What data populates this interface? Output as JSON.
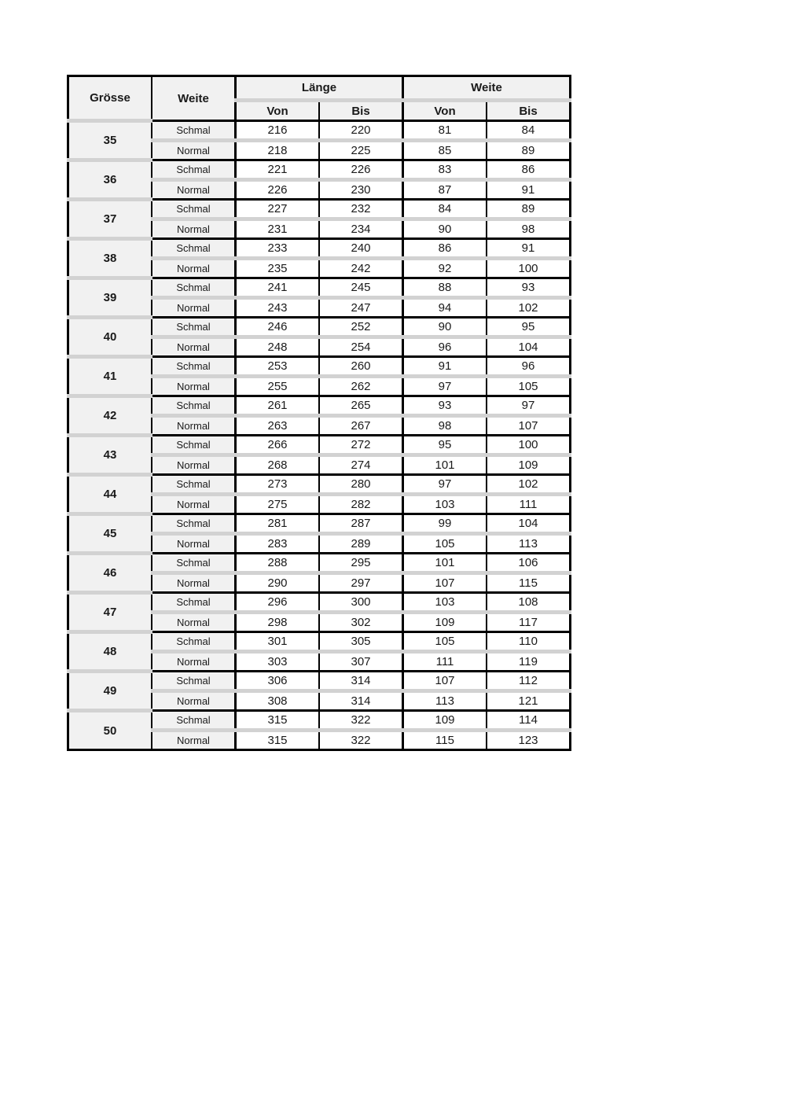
{
  "table": {
    "header": {
      "groesse": "Grösse",
      "weite": "Weite",
      "laenge": "Länge",
      "weite_group": "Weite",
      "von": "Von",
      "bis": "Bis"
    },
    "colors": {
      "border": "#000000",
      "header_bg": "#f1f1f1",
      "separator_band": "#d2d2d2",
      "cell_bg": "#ffffff",
      "text": "#1a1a1a"
    },
    "rows": [
      {
        "size": "35",
        "variants": [
          {
            "weite": "Schmal",
            "laenge_von": "216",
            "laenge_bis": "220",
            "weite_von": "81",
            "weite_bis": "84"
          },
          {
            "weite": "Normal",
            "laenge_von": "218",
            "laenge_bis": "225",
            "weite_von": "85",
            "weite_bis": "89"
          }
        ]
      },
      {
        "size": "36",
        "variants": [
          {
            "weite": "Schmal",
            "laenge_von": "221",
            "laenge_bis": "226",
            "weite_von": "83",
            "weite_bis": "86"
          },
          {
            "weite": "Normal",
            "laenge_von": "226",
            "laenge_bis": "230",
            "weite_von": "87",
            "weite_bis": "91"
          }
        ]
      },
      {
        "size": "37",
        "variants": [
          {
            "weite": "Schmal",
            "laenge_von": "227",
            "laenge_bis": "232",
            "weite_von": "84",
            "weite_bis": "89"
          },
          {
            "weite": "Normal",
            "laenge_von": "231",
            "laenge_bis": "234",
            "weite_von": "90",
            "weite_bis": "98"
          }
        ]
      },
      {
        "size": "38",
        "variants": [
          {
            "weite": "Schmal",
            "laenge_von": "233",
            "laenge_bis": "240",
            "weite_von": "86",
            "weite_bis": "91"
          },
          {
            "weite": "Normal",
            "laenge_von": "235",
            "laenge_bis": "242",
            "weite_von": "92",
            "weite_bis": "100"
          }
        ]
      },
      {
        "size": "39",
        "variants": [
          {
            "weite": "Schmal",
            "laenge_von": "241",
            "laenge_bis": "245",
            "weite_von": "88",
            "weite_bis": "93"
          },
          {
            "weite": "Normal",
            "laenge_von": "243",
            "laenge_bis": "247",
            "weite_von": "94",
            "weite_bis": "102"
          }
        ]
      },
      {
        "size": "40",
        "variants": [
          {
            "weite": "Schmal",
            "laenge_von": "246",
            "laenge_bis": "252",
            "weite_von": "90",
            "weite_bis": "95"
          },
          {
            "weite": "Normal",
            "laenge_von": "248",
            "laenge_bis": "254",
            "weite_von": "96",
            "weite_bis": "104"
          }
        ]
      },
      {
        "size": "41",
        "variants": [
          {
            "weite": "Schmal",
            "laenge_von": "253",
            "laenge_bis": "260",
            "weite_von": "91",
            "weite_bis": "96"
          },
          {
            "weite": "Normal",
            "laenge_von": "255",
            "laenge_bis": "262",
            "weite_von": "97",
            "weite_bis": "105"
          }
        ]
      },
      {
        "size": "42",
        "variants": [
          {
            "weite": "Schmal",
            "laenge_von": "261",
            "laenge_bis": "265",
            "weite_von": "93",
            "weite_bis": "97"
          },
          {
            "weite": "Normal",
            "laenge_von": "263",
            "laenge_bis": "267",
            "weite_von": "98",
            "weite_bis": "107"
          }
        ]
      },
      {
        "size": "43",
        "variants": [
          {
            "weite": "Schmal",
            "laenge_von": "266",
            "laenge_bis": "272",
            "weite_von": "95",
            "weite_bis": "100"
          },
          {
            "weite": "Normal",
            "laenge_von": "268",
            "laenge_bis": "274",
            "weite_von": "101",
            "weite_bis": "109"
          }
        ]
      },
      {
        "size": "44",
        "variants": [
          {
            "weite": "Schmal",
            "laenge_von": "273",
            "laenge_bis": "280",
            "weite_von": "97",
            "weite_bis": "102"
          },
          {
            "weite": "Normal",
            "laenge_von": "275",
            "laenge_bis": "282",
            "weite_von": "103",
            "weite_bis": "111"
          }
        ]
      },
      {
        "size": "45",
        "variants": [
          {
            "weite": "Schmal",
            "laenge_von": "281",
            "laenge_bis": "287",
            "weite_von": "99",
            "weite_bis": "104"
          },
          {
            "weite": "Normal",
            "laenge_von": "283",
            "laenge_bis": "289",
            "weite_von": "105",
            "weite_bis": "113"
          }
        ]
      },
      {
        "size": "46",
        "variants": [
          {
            "weite": "Schmal",
            "laenge_von": "288",
            "laenge_bis": "295",
            "weite_von": "101",
            "weite_bis": "106"
          },
          {
            "weite": "Normal",
            "laenge_von": "290",
            "laenge_bis": "297",
            "weite_von": "107",
            "weite_bis": "115"
          }
        ]
      },
      {
        "size": "47",
        "variants": [
          {
            "weite": "Schmal",
            "laenge_von": "296",
            "laenge_bis": "300",
            "weite_von": "103",
            "weite_bis": "108"
          },
          {
            "weite": "Normal",
            "laenge_von": "298",
            "laenge_bis": "302",
            "weite_von": "109",
            "weite_bis": "117"
          }
        ]
      },
      {
        "size": "48",
        "variants": [
          {
            "weite": "Schmal",
            "laenge_von": "301",
            "laenge_bis": "305",
            "weite_von": "105",
            "weite_bis": "110"
          },
          {
            "weite": "Normal",
            "laenge_von": "303",
            "laenge_bis": "307",
            "weite_von": "111",
            "weite_bis": "119"
          }
        ]
      },
      {
        "size": "49",
        "variants": [
          {
            "weite": "Schmal",
            "laenge_von": "306",
            "laenge_bis": "314",
            "weite_von": "107",
            "weite_bis": "112"
          },
          {
            "weite": "Normal",
            "laenge_von": "308",
            "laenge_bis": "314",
            "weite_von": "113",
            "weite_bis": "121"
          }
        ]
      },
      {
        "size": "50",
        "variants": [
          {
            "weite": "Schmal",
            "laenge_von": "315",
            "laenge_bis": "322",
            "weite_von": "109",
            "weite_bis": "114"
          },
          {
            "weite": "Normal",
            "laenge_von": "315",
            "laenge_bis": "322",
            "weite_von": "115",
            "weite_bis": "123"
          }
        ]
      }
    ]
  }
}
